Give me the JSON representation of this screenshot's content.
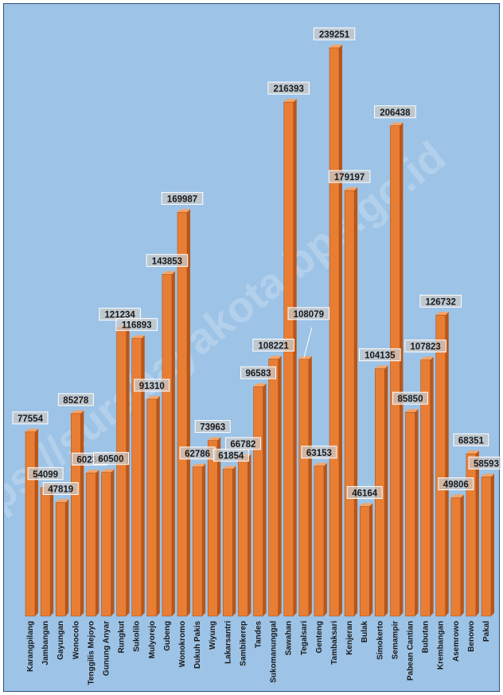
{
  "watermark": "https://surabayakota.bps.go.id",
  "colors": {
    "background": "#9dc3e6",
    "bar_front": "#e87d34",
    "bar_side": "#b9561a",
    "bar_top": "#f4a468",
    "label_box": "#c9c9c9",
    "label_text": "#1a1a1a"
  },
  "chart_data": {
    "type": "bar",
    "title": "",
    "xlabel": "",
    "ylabel": "",
    "ylim": [
      0,
      239251
    ],
    "grid": false,
    "legend": "none",
    "categories": [
      "Karangpilang",
      "Jambangan",
      "Gayungan",
      "Wonocolo",
      "Tenggilis Mejoyo",
      "Gunung Anyar",
      "Rungkut",
      "Sukolilo",
      "Mulyorejo",
      "Gubeng",
      "Wonokromo",
      "Dukuh Pakis",
      "Wiyung",
      "Lakarsantri",
      "Sambikerep",
      "Tandes",
      "Sukomanunggal",
      "Sawahan",
      "Tegalsari",
      "Genteng",
      "Tambaksari",
      "Kenjeran",
      "Bulak",
      "Simokerto",
      "Semampir",
      "Pabean Cantian",
      "Bubutan",
      "Krembangan",
      "Asemrowo",
      "Benowo",
      "Pakal"
    ],
    "values": [
      77554,
      54099,
      47819,
      85278,
      60230,
      60500,
      121234,
      116893,
      91310,
      143853,
      169987,
      62786,
      73963,
      61854,
      66782,
      96583,
      108221,
      216393,
      108079,
      63153,
      239251,
      179197,
      46164,
      104135,
      206438,
      85850,
      107823,
      126732,
      49806,
      68351,
      58593
    ],
    "data_labels": [
      "77554",
      "54099",
      "47819",
      "85278",
      "60230",
      "60500",
      "121234",
      "116893",
      "91310",
      "143853",
      "169987",
      "62786",
      "73963",
      "61854",
      "66782",
      "96583",
      "108221",
      "216393",
      "108079",
      "63153",
      "239251",
      "179197",
      "46164",
      "104135",
      "206438",
      "85850",
      "107823",
      "126732",
      "49806",
      "68351",
      "58593"
    ]
  }
}
